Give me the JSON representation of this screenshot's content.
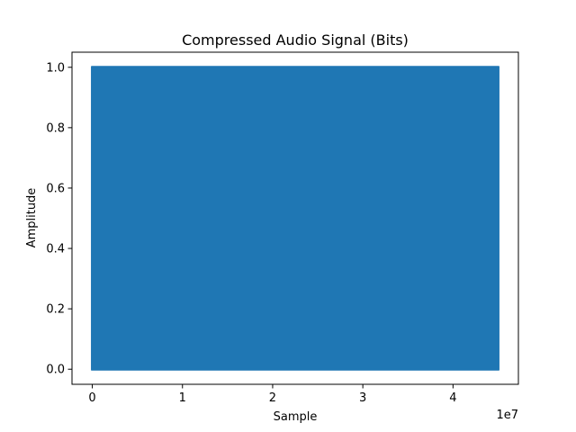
{
  "chart_data": {
    "type": "line",
    "title": "Compressed Audio Signal (Bits)",
    "xlabel": "Sample",
    "ylabel": "Amplitude",
    "x_offset_label": "1e7",
    "xlim": [
      -2250000,
      47250000
    ],
    "ylim": [
      -0.05,
      1.05
    ],
    "x_ticks": [
      {
        "value": 0,
        "label": "0"
      },
      {
        "value": 10000000,
        "label": "1"
      },
      {
        "value": 20000000,
        "label": "2"
      },
      {
        "value": 30000000,
        "label": "3"
      },
      {
        "value": 40000000,
        "label": "4"
      }
    ],
    "y_ticks": [
      {
        "value": 0.0,
        "label": "0.0"
      },
      {
        "value": 0.2,
        "label": "0.2"
      },
      {
        "value": 0.4,
        "label": "0.4"
      },
      {
        "value": 0.6,
        "label": "0.6"
      },
      {
        "value": 0.8,
        "label": "0.8"
      },
      {
        "value": 1.0,
        "label": "1.0"
      }
    ],
    "grid": false,
    "series": [
      {
        "color": "#1f77b4",
        "x_range": [
          0,
          45000000
        ],
        "values_shown": [
          0,
          1
        ]
      }
    ]
  }
}
